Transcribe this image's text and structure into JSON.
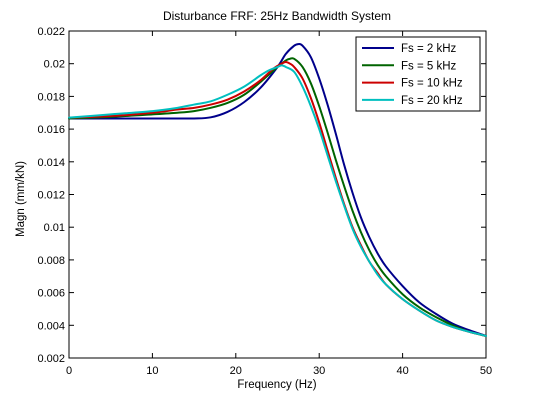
{
  "chart_data": {
    "type": "line",
    "title": "Disturbance FRF: 25Hz Bandwidth System",
    "xlabel": "Frequency (Hz)",
    "ylabel": "Magn (mm/kN)",
    "xlim": [
      0,
      50
    ],
    "ylim": [
      0.002,
      0.022
    ],
    "x_ticks": [
      0,
      10,
      20,
      30,
      40,
      50
    ],
    "x_tick_labels": [
      "0",
      "10",
      "20",
      "30",
      "40",
      "50"
    ],
    "y_ticks": [
      0.002,
      0.004,
      0.006,
      0.008,
      0.01,
      0.012,
      0.014,
      0.016,
      0.018,
      0.02,
      0.022
    ],
    "y_tick_labels": [
      "0.002",
      "0.004",
      "0.006",
      "0.008",
      "0.01",
      "0.012",
      "0.014",
      "0.016",
      "0.018",
      "0.02",
      "0.022"
    ],
    "grid": false,
    "legend_position": "top-right",
    "series": [
      {
        "name": "Fs = 2 kHz",
        "color": "#00008b",
        "x": [
          0,
          5,
          10,
          15,
          17,
          19,
          21,
          23,
          25,
          26,
          27,
          27.5,
          28,
          29,
          30,
          31,
          32,
          33,
          34,
          35,
          36,
          37,
          38,
          40,
          42,
          44,
          46,
          48,
          50
        ],
        "y": [
          0.01665,
          0.01665,
          0.01665,
          0.01665,
          0.01672,
          0.01705,
          0.01765,
          0.01855,
          0.0198,
          0.0206,
          0.0211,
          0.0212,
          0.0211,
          0.0204,
          0.0191,
          0.0175,
          0.0157,
          0.0138,
          0.0121,
          0.0106,
          0.0094,
          0.0084,
          0.0076,
          0.0064,
          0.0054,
          0.0047,
          0.0041,
          0.0037,
          0.00335
        ]
      },
      {
        "name": "Fs = 5 kHz",
        "color": "#006400",
        "x": [
          0,
          5,
          10,
          13,
          15,
          17,
          19,
          21,
          23,
          25,
          26,
          26.5,
          27,
          28,
          29,
          30,
          31,
          32,
          33,
          34,
          35,
          36,
          37,
          38,
          40,
          42,
          44,
          46,
          48,
          50
        ],
        "y": [
          0.01665,
          0.01675,
          0.0169,
          0.017,
          0.0171,
          0.0173,
          0.0176,
          0.0181,
          0.0189,
          0.0198,
          0.0202,
          0.0203,
          0.0203,
          0.0198,
          0.0188,
          0.0174,
          0.0158,
          0.0141,
          0.0125,
          0.011,
          0.0097,
          0.0086,
          0.0077,
          0.007,
          0.0059,
          0.0051,
          0.0045,
          0.004,
          0.0036,
          0.00335
        ]
      },
      {
        "name": "Fs = 10 kHz",
        "color": "#cc0000",
        "x": [
          0,
          5,
          10,
          13,
          15,
          17,
          19,
          21,
          23,
          24.5,
          25.5,
          26,
          26.5,
          27,
          28,
          29,
          30,
          31,
          32,
          33,
          34,
          35,
          36,
          37,
          38,
          40,
          42,
          44,
          46,
          48,
          50
        ],
        "y": [
          0.0167,
          0.0168,
          0.017,
          0.0172,
          0.0173,
          0.0175,
          0.0178,
          0.0183,
          0.019,
          0.0197,
          0.02,
          0.0201,
          0.02,
          0.0198,
          0.0191,
          0.0179,
          0.0164,
          0.0147,
          0.013,
          0.0114,
          0.01,
          0.0089,
          0.0079,
          0.0072,
          0.0065,
          0.0056,
          0.0049,
          0.0043,
          0.0039,
          0.0036,
          0.00335
        ]
      },
      {
        "name": "Fs = 20 kHz",
        "color": "#00bfbf",
        "x": [
          0,
          5,
          10,
          13,
          15,
          17,
          19,
          21,
          23,
          24,
          25,
          25.5,
          26,
          27,
          28,
          29,
          30,
          31,
          32,
          33,
          34,
          35,
          36,
          37,
          38,
          40,
          42,
          44,
          46,
          48,
          50
        ],
        "y": [
          0.0167,
          0.0169,
          0.0171,
          0.0173,
          0.0175,
          0.0177,
          0.0181,
          0.0186,
          0.0193,
          0.0196,
          0.0198,
          0.0199,
          0.0198,
          0.0195,
          0.0186,
          0.0174,
          0.016,
          0.0144,
          0.0128,
          0.0113,
          0.0099,
          0.0088,
          0.0079,
          0.0071,
          0.0065,
          0.0056,
          0.0049,
          0.0043,
          0.0039,
          0.0036,
          0.00335
        ]
      }
    ]
  }
}
